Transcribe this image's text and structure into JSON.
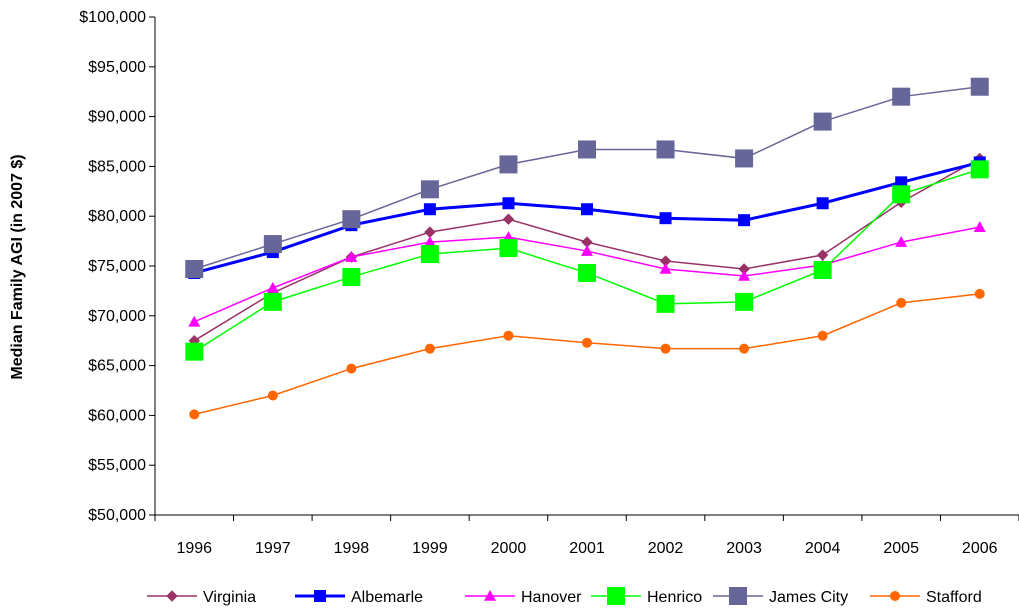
{
  "chart_data": {
    "type": "line",
    "title": "",
    "xlabel": "",
    "ylabel": "Median Family AGI (in 2007 $)",
    "categories": [
      "1996",
      "1997",
      "1998",
      "1999",
      "2000",
      "2001",
      "2002",
      "2003",
      "2004",
      "2005",
      "2006"
    ],
    "y_ticks": [
      "$50,000",
      "$55,000",
      "$60,000",
      "$65,000",
      "$70,000",
      "$75,000",
      "$80,000",
      "$85,000",
      "$90,000",
      "$95,000",
      "$100,000"
    ],
    "ylim": [
      50000,
      100000
    ],
    "grid": false,
    "legend_position": "bottom",
    "series": [
      {
        "name": "Virginia",
        "color": "#993366",
        "marker": "diamond",
        "values": [
          67500,
          72300,
          75900,
          78400,
          79700,
          77400,
          75500,
          74700,
          76100,
          81400,
          85800
        ]
      },
      {
        "name": "Albemarle",
        "color": "#0000FF",
        "marker": "square",
        "values": [
          74300,
          76400,
          79100,
          80700,
          81300,
          80700,
          79800,
          79600,
          81300,
          83400,
          85400
        ]
      },
      {
        "name": "Hanover",
        "color": "#FF00FF",
        "marker": "triangle",
        "values": [
          69400,
          72800,
          75900,
          77400,
          77900,
          76500,
          74700,
          74000,
          75100,
          77400,
          78900
        ]
      },
      {
        "name": "Henrico",
        "color": "#00FF00",
        "marker": "square",
        "values": [
          66400,
          71400,
          73900,
          76200,
          76800,
          74300,
          71200,
          71400,
          74600,
          82200,
          84700
        ]
      },
      {
        "name": "James City",
        "color": "#666699",
        "marker": "square",
        "values": [
          74700,
          77200,
          79700,
          82700,
          85200,
          86700,
          86700,
          85800,
          89500,
          92000,
          93000
        ]
      },
      {
        "name": "Stafford",
        "color": "#FF6600",
        "marker": "circle",
        "values": [
          60100,
          62000,
          64700,
          66700,
          68000,
          67300,
          66700,
          66700,
          68000,
          71300,
          72200
        ]
      }
    ]
  }
}
